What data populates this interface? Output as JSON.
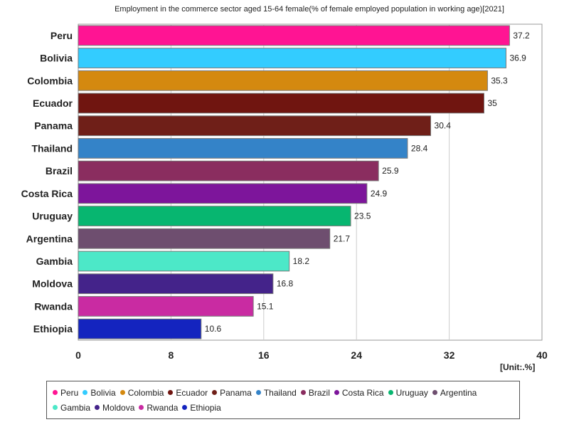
{
  "chart_data": {
    "type": "bar",
    "orientation": "horizontal",
    "title": "Employment in the commerce sector aged 15-64 female(% of female employed population in working age)[2021]",
    "unit": "[Unit:.%]",
    "xlim": [
      0,
      40
    ],
    "xticks": [
      0,
      8,
      16,
      24,
      32,
      40
    ],
    "grid": true,
    "legend_position": "bottom",
    "categories": [
      "Peru",
      "Bolivia",
      "Colombia",
      "Ecuador",
      "Panama",
      "Thailand",
      "Brazil",
      "Costa Rica",
      "Uruguay",
      "Argentina",
      "Gambia",
      "Moldova",
      "Rwanda",
      "Ethiopia"
    ],
    "values": [
      37.2,
      36.9,
      35.3,
      35,
      30.4,
      28.4,
      25.9,
      24.9,
      23.5,
      21.7,
      18.2,
      16.8,
      15.1,
      10.6
    ],
    "colors": [
      "#ff1493",
      "#33ccff",
      "#d4890f",
      "#701510",
      "#6f1f18",
      "#3483c8",
      "#8a2d5f",
      "#7d159b",
      "#07b670",
      "#6e4e6f",
      "#4ce8c8",
      "#44238a",
      "#c92ba2",
      "#1424bf"
    ]
  }
}
